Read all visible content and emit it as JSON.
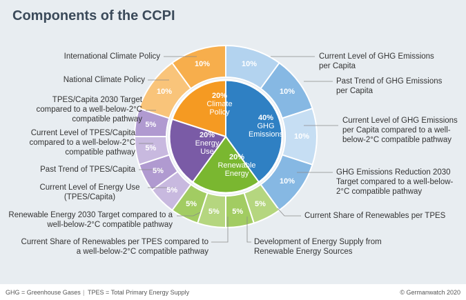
{
  "chart_data": {
    "type": "sunburst",
    "title": "Components of the CCPI",
    "inner": {
      "categories": [
        "GHG Emissions",
        "Renewable Energy",
        "Energy Use",
        "Climate Policy"
      ],
      "values": [
        40,
        20,
        20,
        20
      ],
      "value_labels": [
        "40%",
        "20%",
        "20%",
        "20%"
      ],
      "colors": [
        "#2f80c3",
        "#7ab730",
        "#7a5ba6",
        "#f59a22"
      ]
    },
    "outer": {
      "categories": [
        "Current Level of GHG Emissions per Capita",
        "Past Trend of GHG Emissions per Capita",
        "Current Level of GHG Emissions per Capita compared to a well-below-2°C compatible pathway",
        "GHG Emissions Reduction 2030 Target compared to a well-below-2°C compatible pathway",
        "Current Share of Renewables per TPES",
        "Development of Energy Supply from Renewable Energy Sources",
        "Current Share of Renewables per TPES compared to a well-below-2°C compatible pathway",
        "Renewable Energy 2030 Target compared to a well-below-2°C compatible pathway",
        "Current Level of Energy Use (TPES/Capita)",
        "Past Trend of TPES/Capita",
        "Current Level of TPES/Capita compared to a well-below-2°C compatible pathway",
        "TPES/Capita 2030 Target compared to a well-below-2°C compatible pathway",
        "National Climate Policy",
        "International Climate Policy"
      ],
      "values": [
        10,
        10,
        10,
        10,
        5,
        5,
        5,
        5,
        5,
        5,
        5,
        5,
        10,
        10
      ],
      "value_labels": [
        "10%",
        "10%",
        "10%",
        "10%",
        "5%",
        "5%",
        "5%",
        "5%",
        "5%",
        "5%",
        "5%",
        "5%",
        "10%",
        "10%"
      ],
      "colors": [
        "#b3d3ef",
        "#86b8e3",
        "#c6def3",
        "#86b8e3",
        "#b5d67f",
        "#a2cc62",
        "#b5d67f",
        "#a2cc62",
        "#c8b9df",
        "#b09ad0",
        "#c8b9df",
        "#b09ad0",
        "#f9c47a",
        "#f7ae4c"
      ]
    },
    "notes": [
      "GHG = Greenhouse Gases",
      "TPES = Total Primary Energy Supply"
    ],
    "source": "© Germanwatch 2020"
  }
}
